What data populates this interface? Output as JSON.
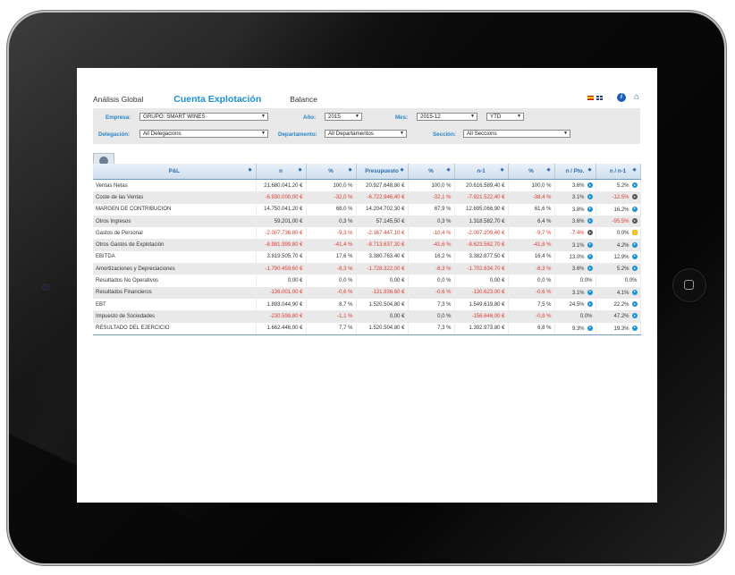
{
  "nav": {
    "tabs": [
      "Análisis Global",
      "Cuenta Explotación",
      "Balance"
    ],
    "active_tab": "Cuenta Explotación"
  },
  "top_icons": [
    "spain-flag-icon",
    "uk-flag-icon",
    "info-icon",
    "home-icon"
  ],
  "filters": {
    "empresa_label": "Empresa:",
    "empresa_value": "GRUPO: SMART WINES",
    "ano_label": "Año:",
    "ano_value": "2015",
    "mes_label": "Mes:",
    "mes_value": "2015-12",
    "period_value": "YTD",
    "delegacion_label": "Delegación:",
    "delegacion_value": "All Delegacions",
    "departamento_label": "Departamento:",
    "departamento_value": "All Departamentos",
    "seccion_label": "Sección:",
    "seccion_value": "All Seccions"
  },
  "table": {
    "headers": [
      "P&L",
      "n",
      "%",
      "Presupuesto",
      "%",
      "n-1",
      "%",
      "n / Pto.",
      "n / n-1"
    ],
    "rows": [
      {
        "label": "Ventas Netas",
        "n": "21.680.041,20 €",
        "pct": "100,0 %",
        "pres": "20.927.648,80 €",
        "pres_pct": "100,0 %",
        "n1": "20.616.589,40 €",
        "n1_pct": "100,0 %",
        "vs_pto": "3.6%",
        "vs_n1": "5.2%",
        "neg": [],
        "alt": false,
        "ind_pto": "blue",
        "ind_n1": "blue"
      },
      {
        "label": "Coste de las Ventas",
        "n": "-6.930.000,00 €",
        "pct": "-32,0 %",
        "pres": "-6.722.946,40 €",
        "pres_pct": "-32,1 %",
        "n1": "-7.921.522,40 €",
        "n1_pct": "-38,4 %",
        "vs_pto": "3.1%",
        "vs_n1": "-12.5%",
        "neg": [
          "n",
          "pct",
          "pres",
          "pres_pct",
          "n1",
          "n1_pct",
          "vs_n1"
        ],
        "alt": true,
        "ind_pto": "blue",
        "ind_n1": "dark"
      },
      {
        "label": "MARGEN DE CONTRIBUCION",
        "n": "14.750.041,20 €",
        "pct": "68,0 %",
        "pres": "14.204.702,30 €",
        "pres_pct": "67,9 %",
        "n1": "12.695.066,90 €",
        "n1_pct": "61,6 %",
        "vs_pto": "3.8%",
        "vs_n1": "16.2%",
        "neg": [],
        "alt": false,
        "ind_pto": "blue",
        "ind_n1": "blue"
      },
      {
        "label": "Otros Ingresos",
        "n": "59.201,00 €",
        "pct": "0,3 %",
        "pres": "57.145,50 €",
        "pres_pct": "0,3 %",
        "n1": "1.318.582,70 €",
        "n1_pct": "6,4 %",
        "vs_pto": "3.6%",
        "vs_n1": "-95.5%",
        "neg": [
          "vs_n1"
        ],
        "alt": true,
        "ind_pto": "blue",
        "ind_n1": "dark"
      },
      {
        "label": "Gastos de Personal",
        "n": "-2.007.736,80 €",
        "pct": "-9,3 %",
        "pres": "-2.167.447,10 €",
        "pres_pct": "-10,4 %",
        "n1": "-2.007.209,40 €",
        "n1_pct": "-9,7 %",
        "vs_pto": "-7.4%",
        "vs_n1": "0.0%",
        "neg": [
          "n",
          "pct",
          "pres",
          "pres_pct",
          "n1",
          "n1_pct",
          "vs_pto"
        ],
        "alt": false,
        "ind_pto": "dark",
        "ind_n1": "yellow"
      },
      {
        "label": "Otros Gastos de Explotación",
        "n": "-8.981.999,80 €",
        "pct": "-41,4 %",
        "pres": "-8.713.637,30 €",
        "pres_pct": "-41,6 %",
        "n1": "-8.623.562,70 €",
        "n1_pct": "-41,8 %",
        "vs_pto": "3.1%",
        "vs_n1": "4.2%",
        "neg": [
          "n",
          "pct",
          "pres",
          "pres_pct",
          "n1",
          "n1_pct"
        ],
        "alt": true,
        "ind_pto": "blue",
        "ind_n1": "blue"
      },
      {
        "label": "EBITDA",
        "n": "3.819.505,70 €",
        "pct": "17,6 %",
        "pres": "3.380.763,40 €",
        "pres_pct": "16,2 %",
        "n1": "3.382.877,50 €",
        "n1_pct": "16,4 %",
        "vs_pto": "13.0%",
        "vs_n1": "12.9%",
        "neg": [],
        "alt": false,
        "ind_pto": "blue",
        "ind_n1": "blue"
      },
      {
        "label": "Amortizaciones y Depreciaciones",
        "n": "-1.790.459,60 €",
        "pct": "-8,3 %",
        "pres": "-1.728.322,00 €",
        "pres_pct": "-8,3 %",
        "n1": "-1.702.634,70 €",
        "n1_pct": "-8,3 %",
        "vs_pto": "3.6%",
        "vs_n1": "5.2%",
        "neg": [
          "n",
          "pct",
          "pres",
          "pres_pct",
          "n1",
          "n1_pct"
        ],
        "alt": true,
        "ind_pto": "blue",
        "ind_n1": "blue"
      },
      {
        "label": "Resultados No Operativos",
        "n": "0,00 €",
        "pct": "0,0 %",
        "pres": "0,00 €",
        "pres_pct": "0,0 %",
        "n1": "0,00 €",
        "n1_pct": "0,0 %",
        "vs_pto": "0.0%",
        "vs_n1": "0.0%",
        "neg": [],
        "alt": false,
        "ind_pto": "",
        "ind_n1": ""
      },
      {
        "label": "Resultados Financieros",
        "n": "-136.001,00 €",
        "pct": "-0,6 %",
        "pres": "-131.936,60 €",
        "pres_pct": "-0,6 %",
        "n1": "-130.623,00 €",
        "n1_pct": "-0,6 %",
        "vs_pto": "3.1%",
        "vs_n1": "4.1%",
        "neg": [
          "n",
          "pct",
          "pres",
          "pres_pct",
          "n1",
          "n1_pct"
        ],
        "alt": true,
        "ind_pto": "blue",
        "ind_n1": "blue"
      },
      {
        "label": "EBT",
        "n": "1.893.044,90 €",
        "pct": "8,7 %",
        "pres": "1.520.504,80 €",
        "pres_pct": "7,3 %",
        "n1": "1.549.619,80 €",
        "n1_pct": "7,5 %",
        "vs_pto": "24.5%",
        "vs_n1": "22.2%",
        "neg": [],
        "alt": false,
        "ind_pto": "blue",
        "ind_n1": "blue"
      },
      {
        "label": "Impuesto de Sociedades",
        "n": "-230.598,80 €",
        "pct": "-1,1 %",
        "pres": "0,00 €",
        "pres_pct": "0,0 %",
        "n1": "-156.646,00 €",
        "n1_pct": "-0,8 %",
        "vs_pto": "0.0%",
        "vs_n1": "47.2%",
        "neg": [
          "n",
          "pct",
          "n1",
          "n1_pct"
        ],
        "alt": true,
        "ind_pto": "",
        "ind_n1": "blue"
      },
      {
        "label": "RESULTADO DEL EJERCICIO",
        "n": "1.662.446,00 €",
        "pct": "7,7 %",
        "pres": "1.520.504,80 €",
        "pres_pct": "7,3 %",
        "n1": "1.392.973,80 €",
        "n1_pct": "6,8 %",
        "vs_pto": "9.3%",
        "vs_n1": "19.3%",
        "neg": [],
        "alt": false,
        "ind_pto": "blue",
        "ind_n1": "blue"
      }
    ]
  }
}
